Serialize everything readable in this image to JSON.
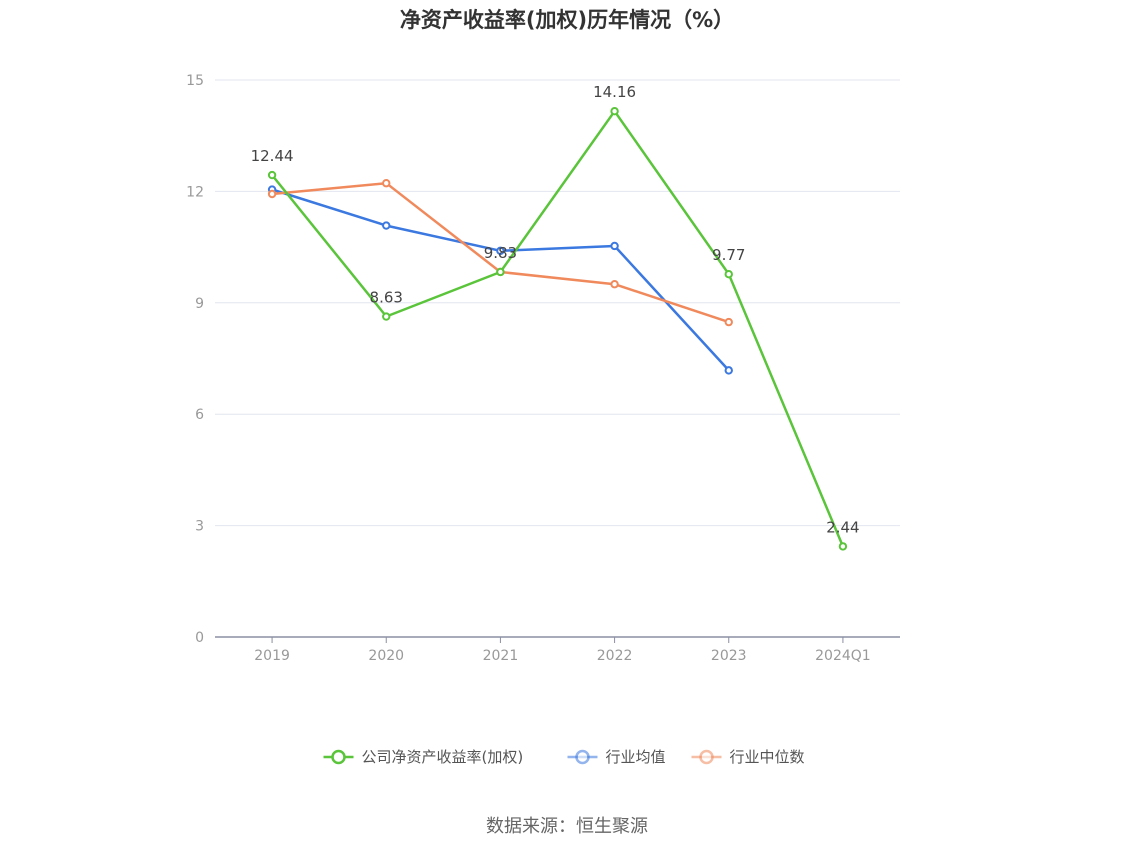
{
  "chart_data": {
    "type": "line",
    "title": "净资产收益率(加权)历年情况（%）",
    "categories": [
      "2019",
      "2020",
      "2021",
      "2022",
      "2023",
      "2024Q1"
    ],
    "ylim": [
      0,
      15
    ],
    "yticks": [
      0,
      3,
      6,
      9,
      12,
      15
    ],
    "grid": true,
    "legend_position": "bottom",
    "series": [
      {
        "name": "公司净资产收益率(加权)",
        "color": "#5ac43a",
        "values": [
          12.44,
          8.63,
          9.83,
          14.16,
          9.77,
          2.44
        ],
        "show_labels": true
      },
      {
        "name": "行业均值",
        "color": "#3b78e0",
        "values": [
          12.05,
          11.08,
          10.4,
          10.53,
          7.18,
          null
        ],
        "show_labels": false
      },
      {
        "name": "行业中位数",
        "color": "#f08a5d",
        "values": [
          11.93,
          12.22,
          9.83,
          9.5,
          8.48,
          null
        ],
        "show_labels": false
      }
    ],
    "source": "数据来源：恒生聚源"
  }
}
